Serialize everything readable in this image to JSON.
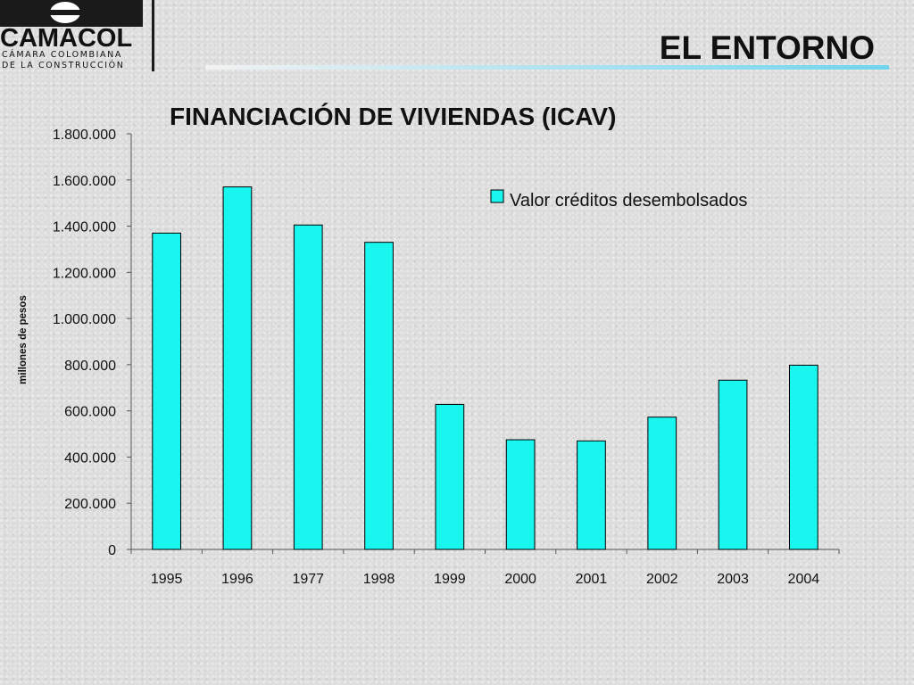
{
  "logo": {
    "name": "CAMACOL",
    "subtitle_line1": "CÁMARA COLOMBIANA",
    "subtitle_line2": "DE LA CONSTRUCCIÓN"
  },
  "header": {
    "section_title": "EL ENTORNO",
    "accent_color": "#6fd4f0"
  },
  "chart_data": {
    "type": "bar",
    "title": "FINANCIACIÓN DE VIVIENDAS (ICAV)",
    "xlabel": "",
    "ylabel": "millones de pesos",
    "categories": [
      "1995",
      "1996",
      "1977",
      "1998",
      "1999",
      "2000",
      "2001",
      "2002",
      "2003",
      "2004"
    ],
    "series": [
      {
        "name": "Valor créditos desembolsados",
        "values": [
          1370000,
          1570000,
          1405000,
          1330000,
          628000,
          475000,
          470000,
          573000,
          733000,
          798000
        ],
        "color": "#19f5ef"
      }
    ],
    "ylim": [
      0,
      1800000
    ],
    "yticks": [
      0,
      200000,
      400000,
      600000,
      800000,
      1000000,
      1200000,
      1400000,
      1600000,
      1800000
    ],
    "ytick_labels": [
      "0",
      "200.000",
      "400.000",
      "600.000",
      "800.000",
      "1.000.000",
      "1.200.000",
      "1.400.000",
      "1.600.000",
      "1.800.000"
    ],
    "grid": false,
    "legend_position": "top-right"
  }
}
